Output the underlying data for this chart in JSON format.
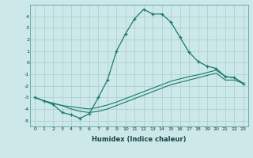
{
  "xlabel": "Humidex (Indice chaleur)",
  "bg_color": "#cce8e8",
  "grid_color": "#aacccc",
  "line_color": "#1a7a6a",
  "xlim": [
    -0.5,
    23.5
  ],
  "ylim": [
    -5.5,
    5.0
  ],
  "xticks": [
    0,
    1,
    2,
    3,
    4,
    5,
    6,
    7,
    8,
    9,
    10,
    11,
    12,
    13,
    14,
    15,
    16,
    17,
    18,
    19,
    20,
    21,
    22,
    23
  ],
  "yticks": [
    -5,
    -4,
    -3,
    -2,
    -1,
    0,
    1,
    2,
    3,
    4
  ],
  "line1_x": [
    0,
    1,
    2,
    3,
    4,
    5,
    6,
    7,
    8,
    9,
    10,
    11,
    12,
    13,
    14,
    15,
    16,
    17,
    18,
    19,
    20,
    21,
    22,
    23
  ],
  "line1_y": [
    -3.0,
    -3.3,
    -3.6,
    -4.3,
    -4.5,
    -4.8,
    -4.4,
    -3.0,
    -1.5,
    1.0,
    2.5,
    3.8,
    4.6,
    4.2,
    4.2,
    3.5,
    2.2,
    0.9,
    0.1,
    -0.3,
    -0.5,
    -1.2,
    -1.3,
    -1.8
  ],
  "line2_x": [
    0,
    1,
    2,
    3,
    4,
    5,
    6,
    7,
    8,
    9,
    10,
    11,
    12,
    13,
    14,
    15,
    16,
    17,
    18,
    19,
    20,
    21,
    22,
    23
  ],
  "line2_y": [
    -3.0,
    -3.3,
    -3.5,
    -3.7,
    -3.8,
    -3.9,
    -4.0,
    -3.85,
    -3.65,
    -3.4,
    -3.1,
    -2.8,
    -2.5,
    -2.2,
    -1.9,
    -1.6,
    -1.4,
    -1.2,
    -1.05,
    -0.85,
    -0.65,
    -1.2,
    -1.3,
    -1.8
  ],
  "line3_x": [
    0,
    1,
    2,
    3,
    4,
    5,
    6,
    7,
    8,
    9,
    10,
    11,
    12,
    13,
    14,
    15,
    16,
    17,
    18,
    19,
    20,
    21,
    22,
    23
  ],
  "line3_y": [
    -3.0,
    -3.3,
    -3.5,
    -3.7,
    -4.0,
    -4.2,
    -4.3,
    -4.2,
    -4.0,
    -3.7,
    -3.4,
    -3.1,
    -2.8,
    -2.5,
    -2.2,
    -1.9,
    -1.7,
    -1.5,
    -1.3,
    -1.1,
    -0.9,
    -1.5,
    -1.5,
    -1.8
  ]
}
